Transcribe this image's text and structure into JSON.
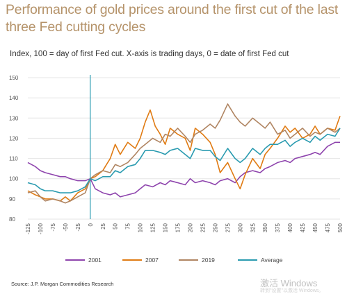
{
  "chart_data": {
    "type": "line",
    "title": "Performance of gold prices around the first cut of the last three Fed cutting cycles",
    "subtitle": "Index, 100 = day of first Fed cut. X-axis is trading days, 0 = date of first Fed cut",
    "xlim": [
      -125,
      500
    ],
    "ylim": [
      80,
      150
    ],
    "x_ticks": [
      -125,
      -100,
      -75,
      -50,
      -25,
      0,
      25,
      50,
      75,
      100,
      125,
      150,
      175,
      200,
      225,
      250,
      275,
      300,
      325,
      350,
      375,
      400,
      425,
      450,
      475,
      500
    ],
    "y_ticks": [
      80,
      90,
      100,
      110,
      120,
      130,
      140,
      150
    ],
    "reference_line_x": 0,
    "legend_position": "bottom",
    "series": [
      {
        "name": "2001",
        "color": "#8e44ad",
        "x": [
          -125,
          -110,
          -100,
          -90,
          -75,
          -60,
          -50,
          -40,
          -25,
          -10,
          0,
          10,
          25,
          40,
          50,
          60,
          75,
          90,
          100,
          110,
          125,
          140,
          150,
          160,
          175,
          190,
          200,
          210,
          225,
          240,
          250,
          260,
          275,
          290,
          300,
          310,
          325,
          340,
          350,
          360,
          375,
          390,
          400,
          410,
          425,
          440,
          450,
          460,
          475,
          490,
          500
        ],
        "values": [
          108,
          106,
          104,
          103,
          102,
          101,
          101,
          100,
          99,
          99,
          100,
          95,
          93,
          92,
          93,
          91,
          92,
          93,
          95,
          97,
          96,
          98,
          97,
          99,
          98,
          97,
          100,
          98,
          99,
          98,
          97,
          99,
          100,
          98,
          101,
          103,
          104,
          103,
          105,
          106,
          108,
          109,
          108,
          110,
          111,
          112,
          113,
          112,
          116,
          118,
          118
        ]
      },
      {
        "name": "2007",
        "color": "#e07b13",
        "x": [
          -125,
          -110,
          -100,
          -90,
          -75,
          -60,
          -50,
          -40,
          -25,
          -10,
          0,
          10,
          25,
          40,
          50,
          60,
          75,
          90,
          100,
          110,
          120,
          125,
          130,
          140,
          150,
          160,
          175,
          190,
          200,
          210,
          225,
          240,
          250,
          260,
          275,
          290,
          300,
          310,
          325,
          340,
          350,
          360,
          375,
          390,
          400,
          410,
          425,
          440,
          450,
          460,
          475,
          490,
          500
        ],
        "values": [
          94,
          92,
          91,
          90,
          90,
          89,
          91,
          89,
          93,
          95,
          100,
          101,
          104,
          110,
          117,
          112,
          118,
          115,
          120,
          128,
          134,
          130,
          126,
          122,
          117,
          125,
          122,
          120,
          114,
          125,
          122,
          118,
          112,
          103,
          108,
          100,
          95,
          102,
          110,
          105,
          112,
          115,
          120,
          126,
          123,
          125,
          120,
          122,
          126,
          122,
          125,
          124,
          131
        ]
      },
      {
        "name": "2019",
        "color": "#b08562",
        "x": [
          -125,
          -110,
          -100,
          -90,
          -75,
          -60,
          -50,
          -40,
          -25,
          -10,
          0,
          10,
          25,
          40,
          50,
          60,
          75,
          90,
          100,
          110,
          125,
          140,
          150,
          160,
          175,
          190,
          200,
          210,
          225,
          240,
          250,
          260,
          275,
          290,
          300,
          310,
          325,
          340,
          350,
          360,
          375,
          390,
          400,
          410,
          425,
          440,
          450,
          460,
          475,
          490,
          500
        ],
        "values": [
          93,
          94,
          91,
          89,
          90,
          89,
          88,
          89,
          91,
          93,
          100,
          102,
          104,
          103,
          107,
          106,
          108,
          112,
          115,
          117,
          120,
          118,
          122,
          121,
          125,
          121,
          118,
          122,
          124,
          127,
          125,
          129,
          137,
          131,
          128,
          126,
          130,
          127,
          125,
          128,
          122,
          124,
          120,
          122,
          125,
          121,
          123,
          122,
          125,
          123,
          125
        ]
      },
      {
        "name": "Average",
        "color": "#2a9bb0",
        "x": [
          -125,
          -110,
          -100,
          -90,
          -75,
          -60,
          -50,
          -40,
          -25,
          -10,
          0,
          10,
          25,
          40,
          50,
          60,
          75,
          90,
          100,
          110,
          125,
          140,
          150,
          160,
          175,
          190,
          200,
          210,
          225,
          240,
          250,
          260,
          275,
          290,
          300,
          310,
          325,
          340,
          350,
          360,
          375,
          390,
          400,
          410,
          425,
          440,
          450,
          460,
          475,
          490,
          500
        ],
        "values": [
          98,
          97,
          95,
          94,
          94,
          93,
          93,
          93,
          94,
          96,
          100,
          99,
          101,
          101,
          104,
          103,
          106,
          107,
          110,
          114,
          114,
          113,
          112,
          114,
          115,
          112,
          110,
          115,
          114,
          114,
          111,
          109,
          115,
          110,
          108,
          110,
          115,
          112,
          115,
          117,
          117,
          119,
          116,
          118,
          120,
          118,
          121,
          119,
          122,
          121,
          125
        ]
      }
    ]
  },
  "source": "Source: J.P. Morgan Commodities Research",
  "watermark": {
    "main": "激活 Windows",
    "sub": "转到\"设置\"以激活 Windows。"
  }
}
